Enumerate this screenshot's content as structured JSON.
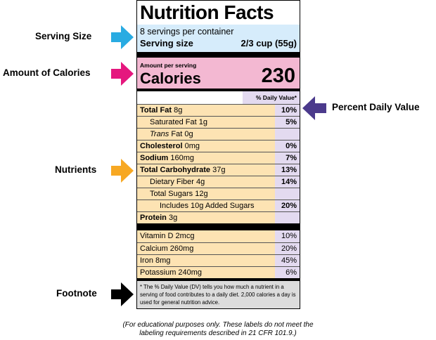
{
  "label": {
    "title": "Nutrition Facts",
    "servings_per_container": "8 servings per container",
    "serving_size_label": "Serving size",
    "serving_size_value": "2/3 cup (55g)",
    "amount_per_serving": "Amount per serving",
    "calories_label": "Calories",
    "calories_value": "230",
    "pdv_header": "% Daily Value*",
    "nutrients": [
      {
        "prefix": "",
        "name": "Total Fat",
        "amount": " 8g",
        "pct": "10%"
      },
      {
        "prefix": "",
        "name": "Saturated Fat",
        "amount": " 1g",
        "pct": "5%"
      },
      {
        "prefix": "Trans",
        "name": " Fat",
        "amount": " 0g",
        "pct": ""
      },
      {
        "prefix": "",
        "name": "Cholesterol",
        "amount": " 0mg",
        "pct": "0%"
      },
      {
        "prefix": "",
        "name": "Sodium",
        "amount": " 160mg",
        "pct": "7%"
      },
      {
        "prefix": "",
        "name": "Total Carbohydrate",
        "amount": " 37g",
        "pct": "13%"
      },
      {
        "prefix": "",
        "name": "Dietary Fiber",
        "amount": " 4g",
        "pct": "14%"
      },
      {
        "prefix": "",
        "name": "Total Sugars",
        "amount": " 12g",
        "pct": ""
      },
      {
        "prefix": "",
        "name": "Includes 10g Added Sugars",
        "amount": "",
        "pct": "20%"
      },
      {
        "prefix": "",
        "name": "Protein",
        "amount": " 3g",
        "pct": ""
      }
    ],
    "vitamins": [
      {
        "name": "Vitamin D 2mcg",
        "pct": "10%"
      },
      {
        "name": "Calcium 260mg",
        "pct": "20%"
      },
      {
        "name": "Iron 8mg",
        "pct": "45%"
      },
      {
        "name": "Potassium 240mg",
        "pct": "6%"
      }
    ],
    "footnote": "* The % Daily Value (DV) tells you how much a nutrient in a serving of food contributes to a daily diet. 2,000 calories a day is used for general nutrition advice."
  },
  "callouts": {
    "serving_size": "Serving Size",
    "calories": "Amount of Calories",
    "percent_daily_value": "Percent Daily Value",
    "nutrients": "Nutrients",
    "footnote": "Footnote"
  },
  "colors": {
    "serving": "#29abe2",
    "calories": "#e5177e",
    "pdv": "#4b3a8c",
    "nutrients": "#f7a823",
    "footnote": "#000000"
  },
  "disclaimer": "(For educational purposes only. These labels do not meet the labeling requirements described in 21 CFR 101.9.)"
}
